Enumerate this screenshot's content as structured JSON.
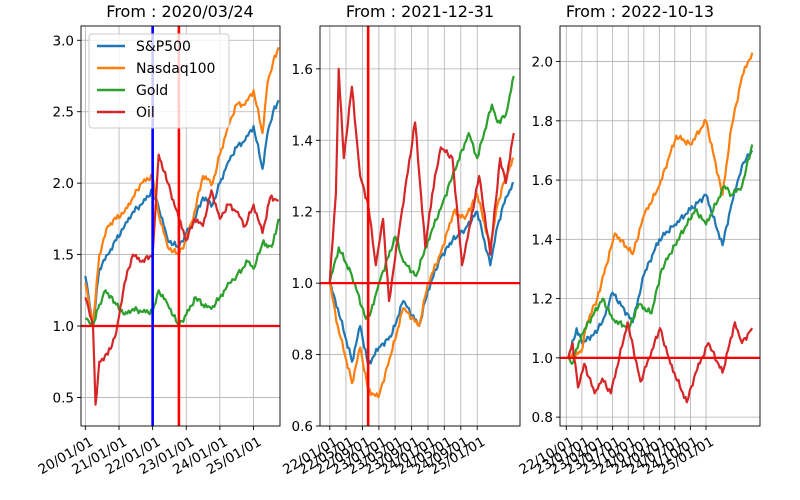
{
  "colors": {
    "sp500": "#1f77b4",
    "nasdaq": "#ff7f0e",
    "gold": "#2ca02c",
    "oil": "#d62728",
    "red_marker": "#ff0000",
    "blue_marker": "#0000ff",
    "grid": "#b0b0b0"
  },
  "chart_data": [
    {
      "type": "line",
      "title": "From : 2020/03/24",
      "xlabel": "",
      "ylabel": "",
      "grid": true,
      "legend_position": "top-left",
      "x_range": [
        "2019-11-15",
        "2025-10-15"
      ],
      "ylim": [
        0.3,
        3.1
      ],
      "y_ticks": [
        0.5,
        1.0,
        1.5,
        2.0,
        2.5,
        3.0
      ],
      "y_tick_labels": [
        "0.5",
        "1.0",
        "1.5",
        "2.0",
        "2.5",
        "3.0"
      ],
      "x_ticks": [
        "2020-01-01",
        "2021-01-01",
        "2022-01-01",
        "2023-01-01",
        "2024-01-01",
        "2025-01-01"
      ],
      "x_tick_labels": [
        "20/01/01",
        "21/01/01",
        "22/01/01",
        "23/01/01",
        "24/01/01",
        "25/01/01"
      ],
      "hline": 1.0,
      "vlines": [
        {
          "x": "2022-01-01",
          "color": "blue"
        },
        {
          "x": "2022-10-13",
          "color": "red"
        }
      ],
      "series": [
        {
          "name": "S&P500",
          "key": "sp500",
          "x": [
            "2020-01-01",
            "2020-03-24",
            "2020-06-01",
            "2020-09-01",
            "2020-12-01",
            "2021-03-01",
            "2021-06-01",
            "2021-09-01",
            "2021-12-31",
            "2022-03-01",
            "2022-06-15",
            "2022-10-13",
            "2023-01-01",
            "2023-04-01",
            "2023-07-01",
            "2023-10-15",
            "2024-01-01",
            "2024-04-01",
            "2024-07-01",
            "2024-10-01",
            "2025-01-01",
            "2025-04-08",
            "2025-06-01",
            "2025-08-01",
            "2025-09-30"
          ],
          "y": [
            1.35,
            1.0,
            1.4,
            1.5,
            1.6,
            1.7,
            1.8,
            1.85,
            1.95,
            1.85,
            1.6,
            1.55,
            1.65,
            1.75,
            1.9,
            1.85,
            2.0,
            2.15,
            2.25,
            2.3,
            2.4,
            2.1,
            2.35,
            2.5,
            2.58
          ]
        },
        {
          "name": "Nasdaq100",
          "key": "nasdaq",
          "x": [
            "2020-01-01",
            "2020-03-24",
            "2020-06-01",
            "2020-09-01",
            "2020-12-01",
            "2021-03-01",
            "2021-06-01",
            "2021-09-01",
            "2021-12-31",
            "2022-03-01",
            "2022-06-15",
            "2022-10-13",
            "2023-01-01",
            "2023-04-01",
            "2023-07-01",
            "2023-10-15",
            "2024-01-01",
            "2024-04-01",
            "2024-07-01",
            "2024-10-01",
            "2025-01-01",
            "2025-04-08",
            "2025-06-01",
            "2025-08-01",
            "2025-09-30"
          ],
          "y": [
            1.3,
            1.0,
            1.5,
            1.7,
            1.75,
            1.8,
            1.9,
            2.0,
            2.05,
            1.8,
            1.55,
            1.5,
            1.6,
            1.8,
            2.05,
            2.0,
            2.2,
            2.4,
            2.55,
            2.55,
            2.65,
            2.35,
            2.7,
            2.85,
            2.95
          ]
        },
        {
          "name": "Gold",
          "key": "gold",
          "x": [
            "2020-01-01",
            "2020-03-24",
            "2020-06-01",
            "2020-08-07",
            "2020-12-01",
            "2021-03-01",
            "2021-06-01",
            "2021-09-01",
            "2021-12-31",
            "2022-03-08",
            "2022-06-15",
            "2022-10-13",
            "2023-01-01",
            "2023-04-15",
            "2023-07-01",
            "2023-10-01",
            "2024-01-01",
            "2024-04-15",
            "2024-07-01",
            "2024-10-30",
            "2025-01-01",
            "2025-04-20",
            "2025-06-01",
            "2025-08-01",
            "2025-09-30"
          ],
          "y": [
            1.05,
            1.0,
            1.15,
            1.25,
            1.15,
            1.08,
            1.12,
            1.1,
            1.1,
            1.25,
            1.15,
            1.0,
            1.08,
            1.2,
            1.15,
            1.12,
            1.2,
            1.3,
            1.35,
            1.45,
            1.4,
            1.6,
            1.55,
            1.58,
            1.75
          ]
        },
        {
          "name": "Oil",
          "key": "oil",
          "x": [
            "2020-01-01",
            "2020-03-24",
            "2020-04-21",
            "2020-06-01",
            "2020-09-01",
            "2020-12-01",
            "2021-03-01",
            "2021-06-01",
            "2021-09-01",
            "2021-12-31",
            "2022-03-08",
            "2022-06-15",
            "2022-10-13",
            "2023-01-01",
            "2023-04-01",
            "2023-07-01",
            "2023-10-01",
            "2024-01-01",
            "2024-04-01",
            "2024-07-01",
            "2024-10-01",
            "2025-01-01",
            "2025-04-08",
            "2025-07-01",
            "2025-09-30"
          ],
          "y": [
            1.2,
            1.0,
            0.45,
            0.75,
            0.8,
            0.95,
            1.3,
            1.5,
            1.45,
            1.5,
            2.2,
            2.0,
            1.75,
            1.6,
            1.75,
            1.7,
            1.95,
            1.75,
            1.85,
            1.8,
            1.7,
            1.85,
            1.65,
            1.9,
            1.88
          ]
        }
      ]
    },
    {
      "type": "line",
      "title": "From : 2021-12-31",
      "xlabel": "",
      "ylabel": "",
      "grid": true,
      "x_range": [
        "2021-10-20",
        "2025-11-15"
      ],
      "ylim": [
        0.6,
        1.72
      ],
      "y_ticks": [
        0.6,
        0.8,
        1.0,
        1.2,
        1.4,
        1.6
      ],
      "y_tick_labels": [
        "0.6",
        "0.8",
        "1.0",
        "1.2",
        "1.4",
        "1.6"
      ],
      "x_ticks": [
        "2022-01-01",
        "2022-05-01",
        "2022-09-01",
        "2023-01-01",
        "2023-05-01",
        "2023-09-01",
        "2024-01-01",
        "2024-05-01",
        "2024-09-01",
        "2025-01-01"
      ],
      "x_tick_labels": [
        "22/01/01",
        "22/05/01",
        "22/09/01",
        "23/01/01",
        "23/05/01",
        "23/09/01",
        "24/01/01",
        "24/05/01",
        "24/09/01",
        "25/01/01"
      ],
      "hline": 1.0,
      "vlines": [
        {
          "x": "2022-10-13",
          "color": "red"
        }
      ],
      "series": [
        {
          "name": "S&P500",
          "key": "sp500",
          "x": [
            "2021-12-31",
            "2022-03-01",
            "2022-06-15",
            "2022-08-15",
            "2022-10-13",
            "2023-01-01",
            "2023-04-01",
            "2023-07-01",
            "2023-10-27",
            "2024-01-01",
            "2024-04-01",
            "2024-07-01",
            "2024-10-01",
            "2025-01-01",
            "2025-04-08",
            "2025-06-01",
            "2025-08-01",
            "2025-09-30"
          ],
          "y": [
            1.0,
            0.93,
            0.78,
            0.88,
            0.77,
            0.82,
            0.85,
            0.95,
            0.88,
            0.98,
            1.07,
            1.12,
            1.15,
            1.2,
            1.05,
            1.16,
            1.24,
            1.28
          ]
        },
        {
          "name": "Nasdaq100",
          "key": "nasdaq",
          "x": [
            "2021-12-31",
            "2022-03-01",
            "2022-06-15",
            "2022-08-15",
            "2022-10-13",
            "2022-12-28",
            "2023-04-01",
            "2023-07-01",
            "2023-10-27",
            "2024-01-01",
            "2024-04-01",
            "2024-07-10",
            "2024-10-01",
            "2025-01-01",
            "2025-04-08",
            "2025-06-01",
            "2025-08-01",
            "2025-09-30"
          ],
          "y": [
            1.0,
            0.88,
            0.72,
            0.82,
            0.7,
            0.68,
            0.8,
            0.93,
            0.88,
            1.0,
            1.08,
            1.2,
            1.18,
            1.25,
            1.1,
            1.22,
            1.3,
            1.35
          ]
        },
        {
          "name": "Gold",
          "key": "gold",
          "x": [
            "2021-12-31",
            "2022-03-08",
            "2022-06-15",
            "2022-09-26",
            "2022-11-03",
            "2023-01-01",
            "2023-05-04",
            "2023-07-01",
            "2023-10-05",
            "2024-01-01",
            "2024-04-15",
            "2024-07-01",
            "2024-10-30",
            "2025-01-01",
            "2025-04-20",
            "2025-06-01",
            "2025-08-01",
            "2025-09-30"
          ],
          "y": [
            1.0,
            1.1,
            1.02,
            0.9,
            0.92,
            1.0,
            1.13,
            1.06,
            1.02,
            1.12,
            1.22,
            1.3,
            1.42,
            1.35,
            1.5,
            1.45,
            1.47,
            1.58
          ]
        },
        {
          "name": "Oil",
          "key": "oil",
          "x": [
            "2021-12-31",
            "2022-02-15",
            "2022-03-08",
            "2022-04-15",
            "2022-06-14",
            "2022-08-15",
            "2022-10-13",
            "2022-12-09",
            "2023-02-01",
            "2023-03-17",
            "2023-06-01",
            "2023-09-27",
            "2023-12-12",
            "2024-02-01",
            "2024-04-05",
            "2024-07-01",
            "2024-09-10",
            "2024-11-01",
            "2025-01-15",
            "2025-04-08",
            "2025-06-20",
            "2025-08-01",
            "2025-09-30"
          ],
          "y": [
            1.0,
            1.25,
            1.6,
            1.35,
            1.55,
            1.3,
            1.22,
            1.05,
            1.18,
            0.95,
            1.15,
            1.45,
            1.1,
            1.25,
            1.38,
            1.35,
            1.05,
            1.15,
            1.3,
            1.08,
            1.35,
            1.28,
            1.42
          ]
        }
      ]
    },
    {
      "type": "line",
      "title": "From : 2022-10-13",
      "xlabel": "",
      "ylabel": "",
      "grid": true,
      "x_range": [
        "2022-08-25",
        "2025-11-15"
      ],
      "ylim": [
        0.77,
        2.12
      ],
      "y_ticks": [
        0.8,
        1.0,
        1.2,
        1.4,
        1.6,
        1.8,
        2.0
      ],
      "y_tick_labels": [
        "0.8",
        "1.0",
        "1.2",
        "1.4",
        "1.6",
        "1.8",
        "2.0"
      ],
      "x_ticks": [
        "2022-10-01",
        "2023-01-01",
        "2023-04-01",
        "2023-07-01",
        "2023-10-01",
        "2024-01-01",
        "2024-04-01",
        "2024-07-01",
        "2024-10-01",
        "2025-01-01"
      ],
      "x_tick_labels": [
        "22/10/01",
        "23/01/01",
        "23/04/01",
        "23/07/01",
        "23/10/01",
        "24/01/01",
        "24/04/01",
        "24/07/01",
        "24/10/01",
        "25/01/01"
      ],
      "hline": 1.0,
      "vlines": [],
      "series": [
        {
          "name": "S&P500",
          "key": "sp500",
          "x": [
            "2022-10-13",
            "2022-12-01",
            "2023-01-01",
            "2023-03-13",
            "2023-05-01",
            "2023-07-01",
            "2023-10-27",
            "2024-01-01",
            "2024-04-01",
            "2024-07-01",
            "2024-10-01",
            "2025-01-01",
            "2025-04-08",
            "2025-06-01",
            "2025-08-01",
            "2025-09-30"
          ],
          "y": [
            1.0,
            1.1,
            1.05,
            1.08,
            1.12,
            1.22,
            1.12,
            1.28,
            1.4,
            1.45,
            1.5,
            1.55,
            1.38,
            1.52,
            1.65,
            1.7
          ]
        },
        {
          "name": "Nasdaq100",
          "key": "nasdaq",
          "x": [
            "2022-10-13",
            "2022-12-28",
            "2023-02-01",
            "2023-04-01",
            "2023-07-15",
            "2023-10-27",
            "2024-01-01",
            "2024-04-01",
            "2024-07-10",
            "2024-10-01",
            "2025-01-01",
            "2025-04-08",
            "2025-06-01",
            "2025-08-01",
            "2025-09-30"
          ],
          "y": [
            1.0,
            1.02,
            1.12,
            1.2,
            1.42,
            1.35,
            1.48,
            1.58,
            1.75,
            1.72,
            1.8,
            1.55,
            1.78,
            1.95,
            2.03
          ]
        },
        {
          "name": "Gold",
          "key": "gold",
          "x": [
            "2022-10-13",
            "2022-11-03",
            "2023-01-01",
            "2023-05-04",
            "2023-07-01",
            "2023-10-05",
            "2023-12-01",
            "2024-02-15",
            "2024-04-15",
            "2024-07-01",
            "2024-10-30",
            "2025-01-01",
            "2025-04-20",
            "2025-06-01",
            "2025-08-01",
            "2025-09-30"
          ],
          "y": [
            1.0,
            0.98,
            1.08,
            1.2,
            1.13,
            1.1,
            1.18,
            1.15,
            1.3,
            1.38,
            1.5,
            1.45,
            1.58,
            1.55,
            1.58,
            1.72
          ]
        },
        {
          "name": "Oil",
          "key": "oil",
          "x": [
            "2022-10-13",
            "2022-11-07",
            "2022-12-09",
            "2023-01-15",
            "2023-03-17",
            "2023-05-01",
            "2023-06-20",
            "2023-09-27",
            "2023-12-12",
            "2024-02-01",
            "2024-04-05",
            "2024-06-05",
            "2024-09-10",
            "2024-11-01",
            "2025-01-15",
            "2025-04-08",
            "2025-06-20",
            "2025-08-01",
            "2025-09-30"
          ],
          "y": [
            1.0,
            1.05,
            0.9,
            0.98,
            0.88,
            0.93,
            0.88,
            1.12,
            0.92,
            1.0,
            1.1,
            0.98,
            0.85,
            0.95,
            1.05,
            0.95,
            1.12,
            1.05,
            1.1
          ]
        }
      ]
    }
  ]
}
